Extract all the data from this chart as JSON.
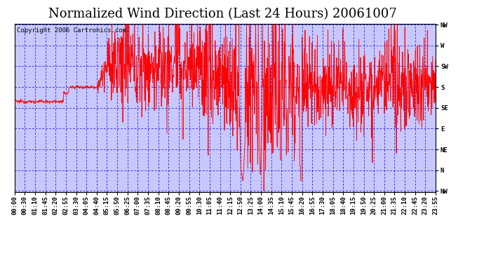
{
  "title": "Normalized Wind Direction (Last 24 Hours) 20061007",
  "copyright_text": "Copyright 2006 Cartronics.com",
  "background_color": "#ffffff",
  "plot_bg_color": "#c8c8ff",
  "grid_color": "#0000dd",
  "line_color": "#ff0000",
  "border_color": "#000000",
  "ytick_labels": [
    "NW",
    "W",
    "SW",
    "S",
    "SE",
    "E",
    "NE",
    "N",
    "NW"
  ],
  "ytick_values": [
    8,
    7,
    6,
    5,
    4,
    3,
    2,
    1,
    0
  ],
  "ylim": [
    -0.05,
    8.05
  ],
  "xtick_labels": [
    "00:00",
    "00:30",
    "01:10",
    "01:45",
    "02:20",
    "02:55",
    "03:30",
    "04:05",
    "04:40",
    "05:15",
    "05:50",
    "06:25",
    "07:00",
    "07:35",
    "08:10",
    "08:45",
    "09:20",
    "09:55",
    "10:30",
    "11:05",
    "11:40",
    "12:15",
    "12:50",
    "13:25",
    "14:00",
    "14:35",
    "15:10",
    "15:45",
    "16:20",
    "16:55",
    "17:30",
    "18:05",
    "18:40",
    "19:15",
    "19:50",
    "20:25",
    "21:00",
    "21:35",
    "22:10",
    "22:45",
    "23:20",
    "23:55"
  ],
  "title_fontsize": 13,
  "tick_fontsize": 6.5,
  "copyright_fontsize": 6.5,
  "seed": 12345
}
